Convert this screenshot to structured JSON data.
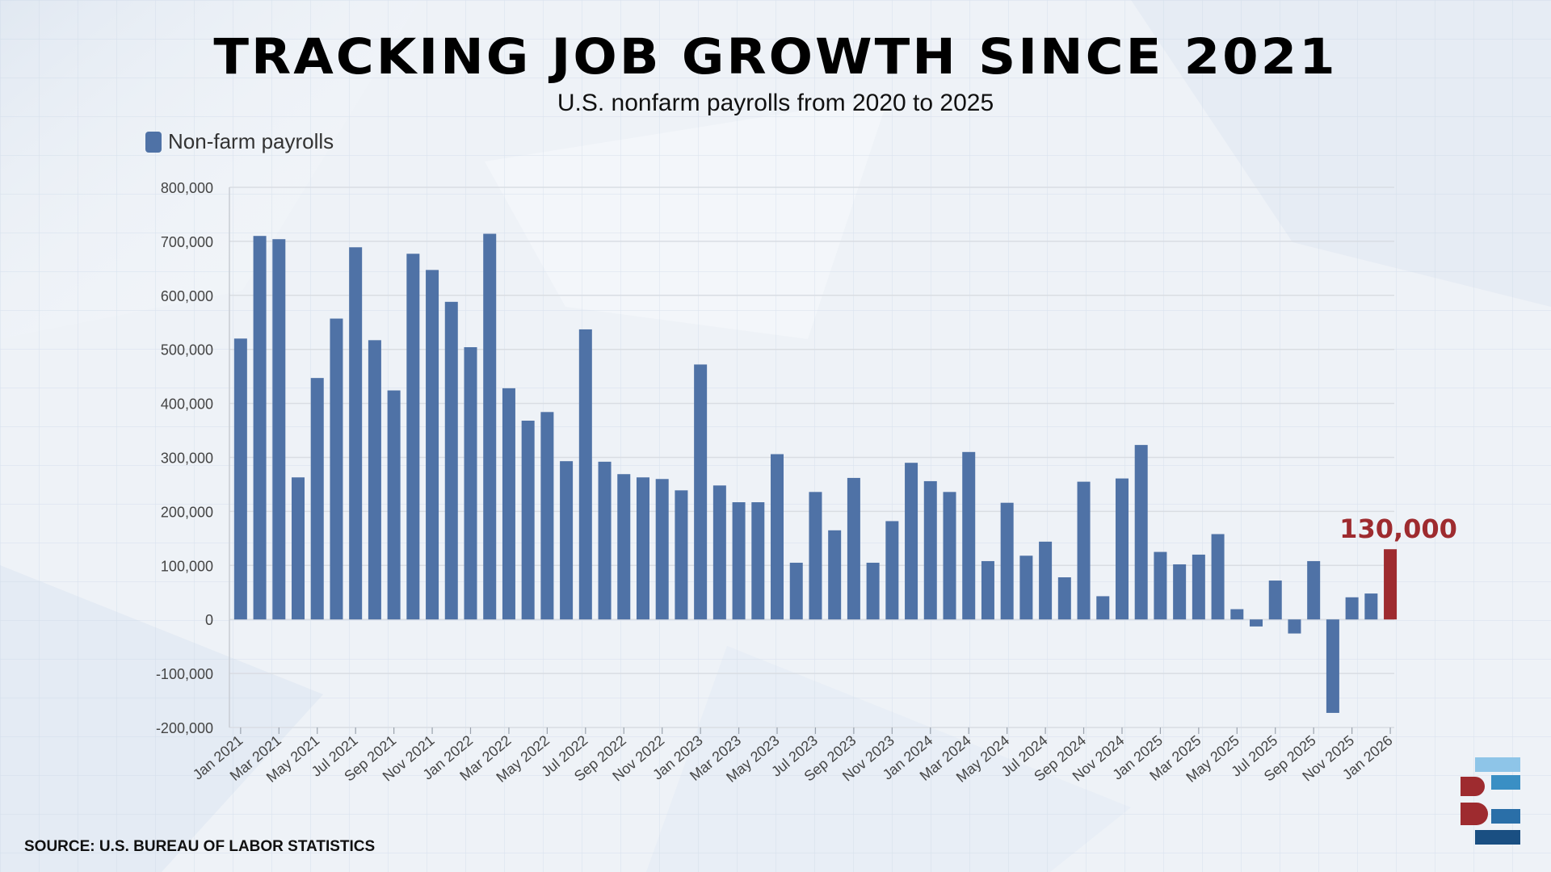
{
  "title": "TRACKING JOB GROWTH SINCE 2021",
  "subtitle": "U.S. nonfarm payrolls from 2020 to 2025",
  "source": "SOURCE: U.S. BUREAU OF LABOR STATISTICS",
  "colors": {
    "bar": "#4f72a6",
    "highlight": "#9e2b2f",
    "grid": "#d9dde3",
    "axis_text": "#444444"
  },
  "chart_data": {
    "type": "bar",
    "title": "TRACKING JOB GROWTH SINCE 2021",
    "subtitle": "U.S. nonfarm payrolls from 2020 to 2025",
    "legend": [
      "Non-farm payrolls"
    ],
    "legend_position": "top-left",
    "ylim": [
      -200000,
      800000
    ],
    "yticks": [
      800000,
      700000,
      600000,
      500000,
      400000,
      300000,
      200000,
      100000,
      0,
      -100000,
      -200000
    ],
    "ytick_labels": [
      "800,000",
      "700,000",
      "600,000",
      "500,000",
      "400,000",
      "300,000",
      "200,000",
      "100,000",
      "0",
      "-100,000",
      "-200,000"
    ],
    "grid": true,
    "xtick_labels": [
      "Jan 2021",
      "Mar 2021",
      "May 2021",
      "Jul 2021",
      "Sep 2021",
      "Nov 2021",
      "Jan 2022",
      "Mar 2022",
      "May 2022",
      "Jul 2022",
      "Sep 2022",
      "Nov 2022",
      "Jan 2023",
      "Mar 2023",
      "May 2023",
      "Jul 2023",
      "Sep 2023",
      "Nov 2023",
      "Jan 2024",
      "Mar 2024",
      "May 2024",
      "Jul 2024",
      "Sep 2024",
      "Nov 2024",
      "Jan 2025",
      "Mar 2025",
      "May 2025",
      "Jul 2025",
      "Sep 2025",
      "Nov 2025",
      "Jan 2026"
    ],
    "series": [
      {
        "name": "Non-farm payrolls",
        "values": [
          520000,
          710000,
          704000,
          263000,
          447000,
          557000,
          689000,
          517000,
          424000,
          677000,
          647000,
          588000,
          504000,
          714000,
          428000,
          368000,
          384000,
          293000,
          537000,
          292000,
          269000,
          263000,
          260000,
          239000,
          472000,
          248000,
          217000,
          217000,
          306000,
          105000,
          236000,
          165000,
          262000,
          105000,
          182000,
          290000,
          256000,
          236000,
          310000,
          108000,
          216000,
          118000,
          144000,
          78000,
          255000,
          43000,
          261000,
          323000,
          125000,
          102000,
          120000,
          158000,
          19000,
          -13000,
          72000,
          -26000,
          108000,
          -173000,
          41000,
          48000
        ]
      }
    ],
    "highlight": {
      "value": 130000,
      "label": "130,000",
      "month": "Jan 2026"
    }
  }
}
